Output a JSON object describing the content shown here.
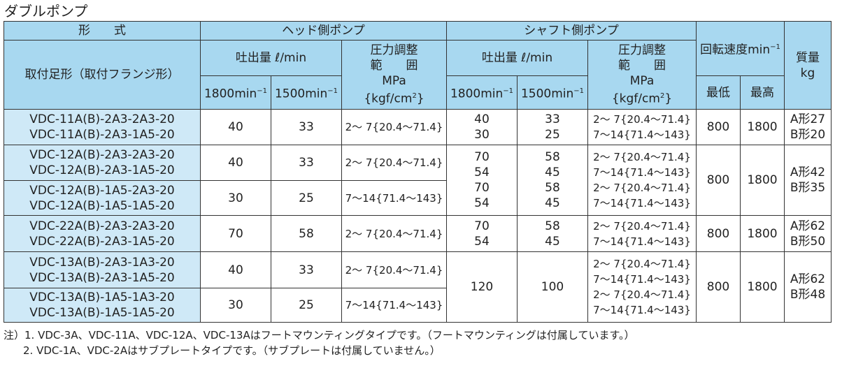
{
  "title": "ダブルポンプ",
  "header": {
    "keishiki": "形　　式",
    "head_side": "ヘッド側ポンプ",
    "shaft_side": "シャフト側ポンプ",
    "speed": "回転速度min",
    "mass_l1": "質量",
    "mass_l2": "kg",
    "mounting": "取付足形（取付フランジ形）",
    "discharge": "吐出量 ℓ/min",
    "press_l1": "圧力調整",
    "press_l2": "範　　囲",
    "press_l3": "MPa",
    "press_l4": "{kgf/cm",
    "sup_2": "2",
    "press_l4_end": "}",
    "rpm1800": "1800min",
    "rpm1500": "1500min",
    "sup_m1": "−1",
    "min_speed": "最低",
    "max_speed": "最高"
  },
  "rows": {
    "g1": {
      "models": [
        "VDC-11A(B)-2A3-2A3-20",
        "VDC-11A(B)-2A3-1A5-20"
      ],
      "h1800": "40",
      "h1500": "33",
      "hp": "2～ 7{20.4～71.4}",
      "s1800": [
        "40",
        "30"
      ],
      "s1500": [
        "33",
        "25"
      ],
      "sp": [
        "2～ 7{20.4～71.4}",
        "7～14{71.4～143}"
      ],
      "min": "800",
      "max": "1800",
      "mass": [
        "A形27",
        "B形20"
      ]
    },
    "g2": {
      "models_a": [
        "VDC-12A(B)-2A3-2A3-20",
        "VDC-12A(B)-2A3-1A5-20"
      ],
      "models_b": [
        "VDC-12A(B)-1A5-2A3-20",
        "VDC-12A(B)-1A5-1A5-20"
      ],
      "h1800_a": "40",
      "h1500_a": "33",
      "hp_a": "2～ 7{20.4～71.4}",
      "h1800_b": "30",
      "h1500_b": "25",
      "hp_b": "7～14{71.4～143}",
      "s1800": [
        "70",
        "54",
        "70",
        "54"
      ],
      "s1500": [
        "58",
        "45",
        "58",
        "45"
      ],
      "sp": [
        "2～ 7{20.4～71.4}",
        "7～14{71.4～143}",
        "2～ 7{20.4～71.4}",
        "7～14{71.4～143}"
      ],
      "min": "800",
      "max": "1800",
      "mass": [
        "A形42",
        "B形35"
      ]
    },
    "g3": {
      "models": [
        "VDC-22A(B)-2A3-2A3-20",
        "VDC-22A(B)-2A3-1A5-20"
      ],
      "h1800": "70",
      "h1500": "58",
      "hp": "2～ 7{20.4～71.4}",
      "s1800": [
        "70",
        "54"
      ],
      "s1500": [
        "58",
        "45"
      ],
      "sp": [
        "2～ 7{20.4～71.4}",
        "7～14{71.4～143}"
      ],
      "min": "800",
      "max": "1800",
      "mass": [
        "A形62",
        "B形50"
      ]
    },
    "g4": {
      "models_a": [
        "VDC-13A(B)-2A3-1A3-20",
        "VDC-13A(B)-2A3-1A5-20"
      ],
      "models_b": [
        "VDC-13A(B)-1A5-1A3-20",
        "VDC-13A(B)-1A5-1A5-20"
      ],
      "h1800_a": "40",
      "h1500_a": "33",
      "hp_a": "2～ 7{20.4～71.4}",
      "h1800_b": "30",
      "h1500_b": "25",
      "hp_b": "7～14{71.4～143}",
      "s1800": "120",
      "s1500": "100",
      "sp": [
        "2～ 7{20.4～71.4}",
        "7～14{71.4～143}",
        "2～ 7{20.4～71.4}",
        "7～14{71.4～143}"
      ],
      "min": "800",
      "max": "1800",
      "mass": [
        "A形62",
        "B形48"
      ]
    }
  },
  "notes": [
    "注）1. VDC-3A、VDC-11A、VDC-12A、VDC-13Aはフートマウンティングタイプです。（フートマウンティングは付属しています。）",
    "2. VDC-1A、VDC-2Aはサブプレートタイプです。（サブプレートは付属していません。）"
  ],
  "colors": {
    "header_bg": "#a8d8f0",
    "model_bg": "#cfe9f7",
    "border": "#333333"
  }
}
